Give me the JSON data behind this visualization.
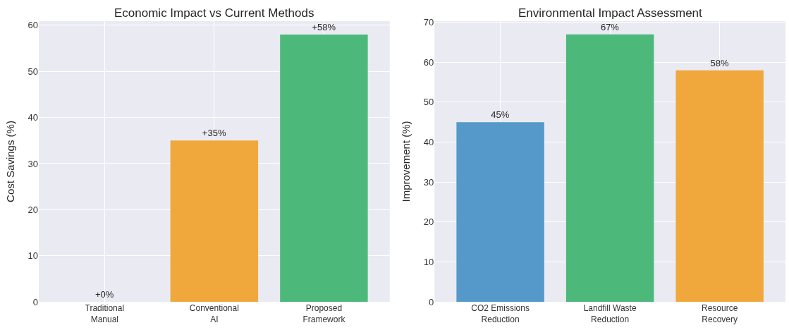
{
  "chart_data": [
    {
      "type": "bar",
      "title": "Economic Impact vs Current Methods",
      "ylabel": "Cost Savings (%)",
      "categories": [
        "Traditional\nManual",
        "Conventional\nAI",
        "Proposed\nFramework"
      ],
      "values": [
        0,
        35,
        58
      ],
      "colors": [
        "#e74c3c",
        "#f0a83c",
        "#4cb97a"
      ],
      "value_labels": [
        "+0%",
        "+35%",
        "+58%"
      ],
      "ylim": [
        0,
        60.9
      ],
      "yticks": [
        0,
        10,
        20,
        30,
        40,
        50,
        60
      ],
      "grid": true
    },
    {
      "type": "bar",
      "title": "Environmental Impact Assessment",
      "ylabel": "Improvement (%)",
      "categories": [
        "CO2 Emissions\nReduction",
        "Landfill Waste\nReduction",
        "Resource\nRecovery"
      ],
      "values": [
        45,
        67,
        58
      ],
      "colors": [
        "#5499c9",
        "#4cb97a",
        "#f0a83c"
      ],
      "value_labels": [
        "45%",
        "67%",
        "58%"
      ],
      "ylim": [
        0,
        70.3
      ],
      "yticks": [
        0,
        10,
        20,
        30,
        40,
        50,
        60,
        70
      ],
      "grid": true
    }
  ]
}
